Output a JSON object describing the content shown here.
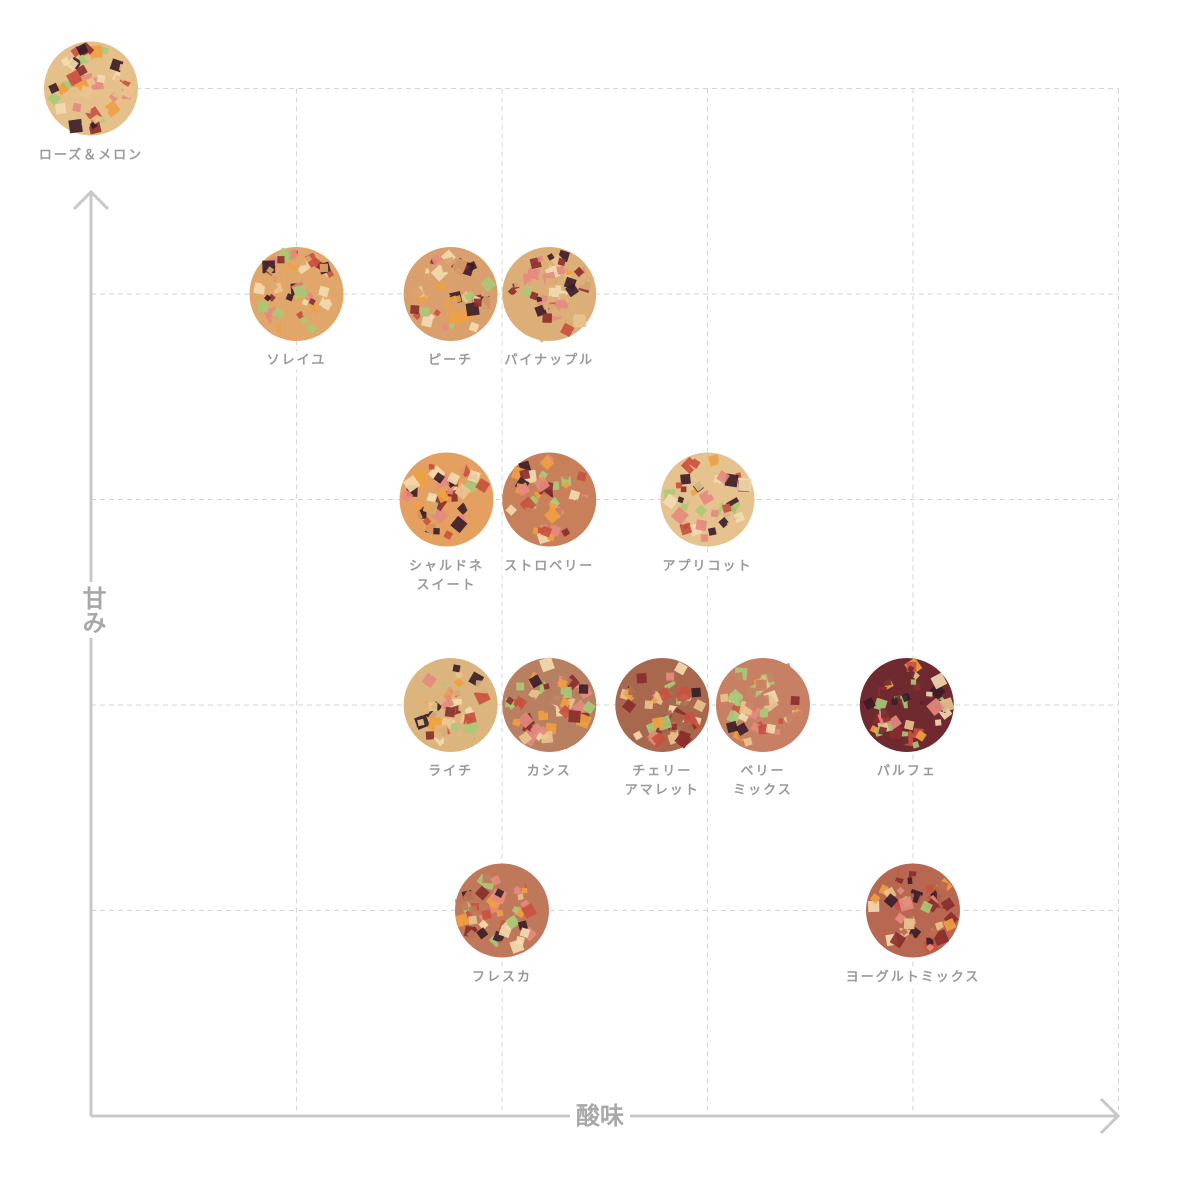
{
  "chart_data": {
    "type": "scatter",
    "xlabel": "酸味",
    "ylabel": "甘み",
    "xlim": [
      0,
      5
    ],
    "ylim": [
      0,
      5
    ],
    "grid": true,
    "grid_style": "dashed",
    "axis_color": "#c8c8c8",
    "points": [
      {
        "name": "ローズ＆メロン",
        "x": 0.0,
        "y": 5.0,
        "color": "#e6c08a"
      },
      {
        "name": "ソレイユ",
        "x": 1.0,
        "y": 4.0,
        "color": "#e0a66a"
      },
      {
        "name": "ピーチ",
        "x": 1.75,
        "y": 4.0,
        "color": "#d9a06e"
      },
      {
        "name": "パイナップル",
        "x": 2.23,
        "y": 4.0,
        "color": "#dcae78"
      },
      {
        "name": "シャルドネ\nスイート",
        "x": 1.73,
        "y": 3.0,
        "color": "#e4a060"
      },
      {
        "name": "ストロベリー",
        "x": 2.23,
        "y": 3.0,
        "color": "#c8805a"
      },
      {
        "name": "アプリコット",
        "x": 3.0,
        "y": 3.0,
        "color": "#e6c28e"
      },
      {
        "name": "ライチ",
        "x": 1.75,
        "y": 2.0,
        "color": "#dcb47e"
      },
      {
        "name": "カシス",
        "x": 2.23,
        "y": 2.0,
        "color": "#b88060"
      },
      {
        "name": "チェリー\nアマレット",
        "x": 2.78,
        "y": 2.0,
        "color": "#a8684e"
      },
      {
        "name": "ベリー\nミックス",
        "x": 3.27,
        "y": 2.0,
        "color": "#c88064"
      },
      {
        "name": "パルフェ",
        "x": 3.97,
        "y": 2.0,
        "color": "#6e2a30"
      },
      {
        "name": "フレスカ",
        "x": 2.0,
        "y": 1.0,
        "color": "#c0785a"
      },
      {
        "name": "ヨーグルトミックス",
        "x": 4.0,
        "y": 1.0,
        "color": "#b86850"
      }
    ]
  }
}
